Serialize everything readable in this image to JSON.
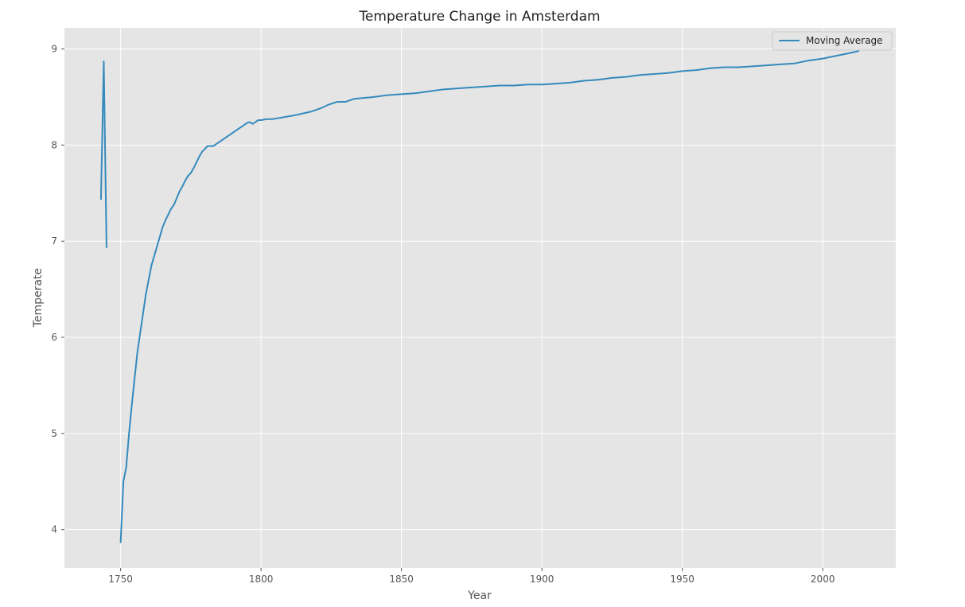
{
  "chart_data": {
    "type": "line",
    "title": "Temperature Change in Amsterdam",
    "xlabel": "Year",
    "ylabel": "Temperate",
    "xlim": [
      1730,
      2026
    ],
    "ylim": [
      3.6,
      9.22
    ],
    "xticks": [
      1750,
      1800,
      1850,
      1900,
      1950,
      2000
    ],
    "yticks": [
      4,
      5,
      6,
      7,
      8,
      9
    ],
    "grid": true,
    "legend_position": "top-right",
    "colors": {
      "plot_background": "#e5e5e5",
      "grid": "#ffffff",
      "series": "#348abd"
    },
    "series": [
      {
        "name": "Moving Average",
        "segments": [
          {
            "x": [
              1743,
              1744,
              1745
            ],
            "y": [
              7.43,
              8.87,
              6.93
            ]
          },
          {
            "x": [
              1750,
              1751,
              1752,
              1753,
              1754,
              1755,
              1756,
              1757,
              1758,
              1759,
              1760,
              1761,
              1762,
              1763,
              1764,
              1765,
              1766,
              1767,
              1768,
              1769,
              1770,
              1771,
              1772,
              1773,
              1774,
              1775,
              1776,
              1777,
              1778,
              1779,
              1780,
              1781,
              1782,
              1783,
              1784,
              1785,
              1786,
              1787,
              1788,
              1789,
              1790,
              1791,
              1792,
              1793,
              1794,
              1795,
              1796,
              1797,
              1798,
              1799,
              1800,
              1802,
              1804,
              1806,
              1808,
              1810,
              1812,
              1815,
              1818,
              1821,
              1824,
              1827,
              1830,
              1833,
              1836,
              1840,
              1845,
              1850,
              1855,
              1860,
              1865,
              1870,
              1875,
              1880,
              1885,
              1890,
              1895,
              1900,
              1905,
              1910,
              1915,
              1920,
              1925,
              1930,
              1935,
              1940,
              1945,
              1950,
              1955,
              1960,
              1965,
              1970,
              1975,
              1980,
              1985,
              1990,
              1995,
              2000,
              2005,
              2010,
              2013
            ],
            "y": [
              3.86,
              4.5,
              4.65,
              5.0,
              5.3,
              5.58,
              5.85,
              6.05,
              6.25,
              6.45,
              6.6,
              6.75,
              6.85,
              6.95,
              7.05,
              7.15,
              7.22,
              7.28,
              7.34,
              7.38,
              7.45,
              7.52,
              7.57,
              7.63,
              7.68,
              7.71,
              7.76,
              7.82,
              7.88,
              7.93,
              7.96,
              7.99,
              7.99,
              7.99,
              8.01,
              8.03,
              8.05,
              8.07,
              8.09,
              8.11,
              8.13,
              8.15,
              8.17,
              8.19,
              8.21,
              8.23,
              8.24,
              8.22,
              8.24,
              8.26,
              8.26,
              8.27,
              8.27,
              8.28,
              8.29,
              8.3,
              8.31,
              8.33,
              8.35,
              8.38,
              8.42,
              8.45,
              8.45,
              8.48,
              8.49,
              8.5,
              8.52,
              8.53,
              8.54,
              8.56,
              8.58,
              8.59,
              8.6,
              8.61,
              8.62,
              8.62,
              8.63,
              8.63,
              8.64,
              8.65,
              8.67,
              8.68,
              8.7,
              8.71,
              8.73,
              8.74,
              8.75,
              8.77,
              8.78,
              8.8,
              8.81,
              8.81,
              8.82,
              8.83,
              8.84,
              8.85,
              8.88,
              8.9,
              8.93,
              8.96,
              8.98
            ]
          }
        ]
      }
    ]
  }
}
